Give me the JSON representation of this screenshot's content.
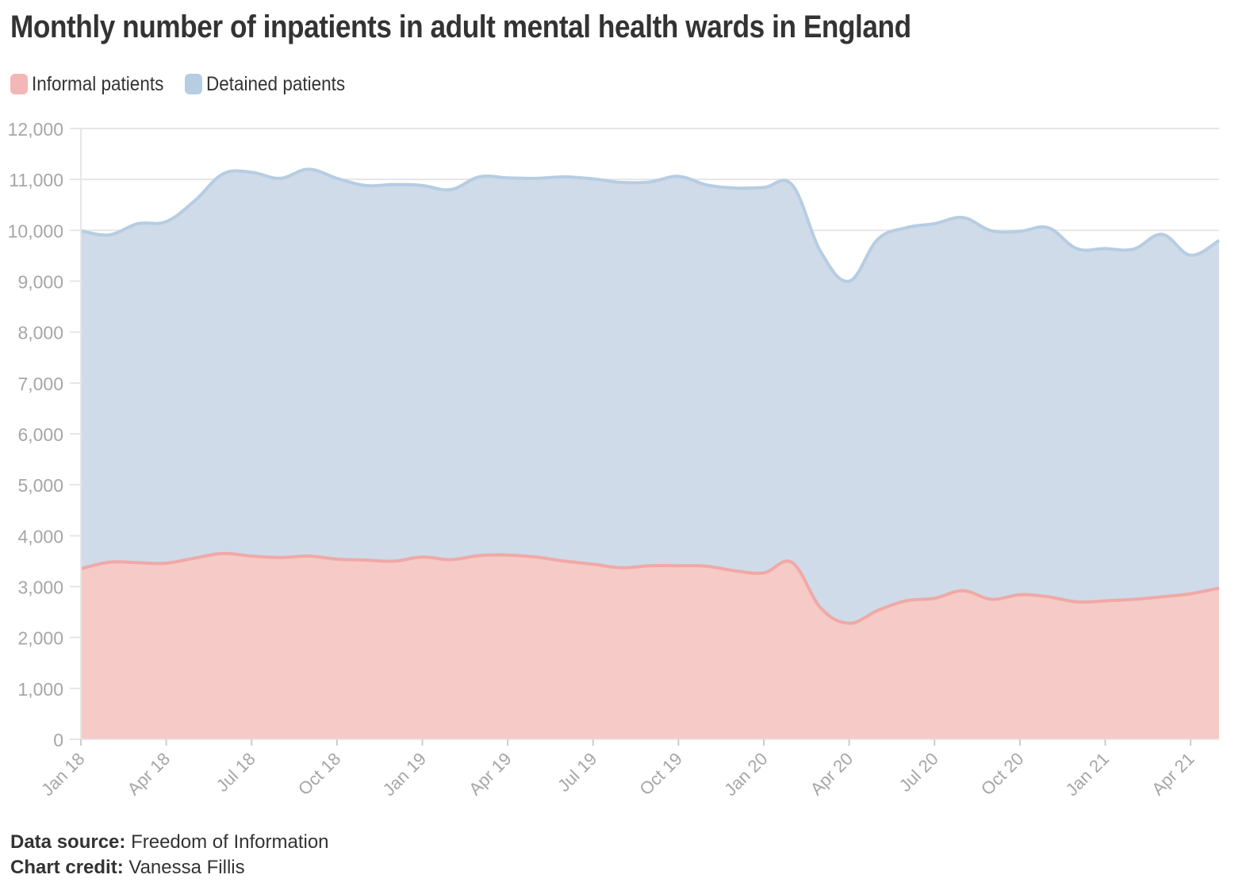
{
  "title": "Monthly number of inpatients in adult mental health wards in England",
  "legend": [
    {
      "label": "Informal patients",
      "color": "#f3b8b5"
    },
    {
      "label": "Detained patients",
      "color": "#b6cde2"
    }
  ],
  "footer": {
    "source_label": "Data source:",
    "source_value": "Freedom of Information",
    "credit_label": "Chart credit:",
    "credit_value": "Vanessa Fillis"
  },
  "chart_data": {
    "type": "area",
    "stacked": true,
    "title": "Monthly number of inpatients in adult mental health wards in England",
    "xlabel": "",
    "ylabel": "",
    "ylim": [
      0,
      12000
    ],
    "y_ticks": [
      "0",
      "1,000",
      "2,000",
      "3,000",
      "4,000",
      "5,000",
      "6,000",
      "7,000",
      "8,000",
      "9,000",
      "10,000",
      "11,000",
      "12,000"
    ],
    "x": [
      "Jan 18",
      "Feb 18",
      "Mar 18",
      "Apr 18",
      "May 18",
      "Jun 18",
      "Jul 18",
      "Aug 18",
      "Sep 18",
      "Oct 18",
      "Nov 18",
      "Dec 18",
      "Jan 19",
      "Feb 19",
      "Mar 19",
      "Apr 19",
      "May 19",
      "Jun 19",
      "Jul 19",
      "Aug 19",
      "Sep 19",
      "Oct 19",
      "Nov 19",
      "Dec 19",
      "Jan 20",
      "Feb 20",
      "Mar 20",
      "Apr 20",
      "May 20",
      "Jun 20",
      "Jul 20",
      "Aug 20",
      "Sep 20",
      "Oct 20",
      "Nov 20",
      "Dec 20",
      "Jan 21",
      "Feb 21",
      "Mar 21",
      "Apr 21",
      "May 21"
    ],
    "x_tick_labels": [
      "Jan 18",
      "Apr 18",
      "Jul 18",
      "Oct 18",
      "Jan 19",
      "Apr 19",
      "Jul 19",
      "Oct 19",
      "Jan 20",
      "Apr 20",
      "Jul 20",
      "Oct 20",
      "Jan 21",
      "Apr 21"
    ],
    "series": [
      {
        "name": "Informal patients",
        "color": "#f3b8b5",
        "line_color": "#f0a9a6",
        "values": [
          3350,
          3480,
          3470,
          3460,
          3560,
          3650,
          3600,
          3570,
          3600,
          3540,
          3520,
          3500,
          3580,
          3530,
          3610,
          3620,
          3580,
          3500,
          3440,
          3370,
          3410,
          3410,
          3400,
          3310,
          3270,
          3470,
          2580,
          2280,
          2530,
          2720,
          2770,
          2920,
          2750,
          2840,
          2800,
          2700,
          2720,
          2750,
          2800,
          2860,
          2970
        ]
      },
      {
        "name": "Detained patients",
        "color": "#cfdbe9",
        "line_color": "#b6cde2",
        "values": [
          6640,
          6430,
          6660,
          6710,
          7020,
          7460,
          7540,
          7450,
          7600,
          7480,
          7360,
          7400,
          7300,
          7270,
          7440,
          7410,
          7440,
          7550,
          7570,
          7570,
          7540,
          7650,
          7490,
          7520,
          7570,
          7420,
          7000,
          6720,
          7290,
          7330,
          7360,
          7330,
          7240,
          7140,
          7250,
          6940,
          6920,
          6880,
          7120,
          6650,
          6830
        ]
      }
    ]
  }
}
